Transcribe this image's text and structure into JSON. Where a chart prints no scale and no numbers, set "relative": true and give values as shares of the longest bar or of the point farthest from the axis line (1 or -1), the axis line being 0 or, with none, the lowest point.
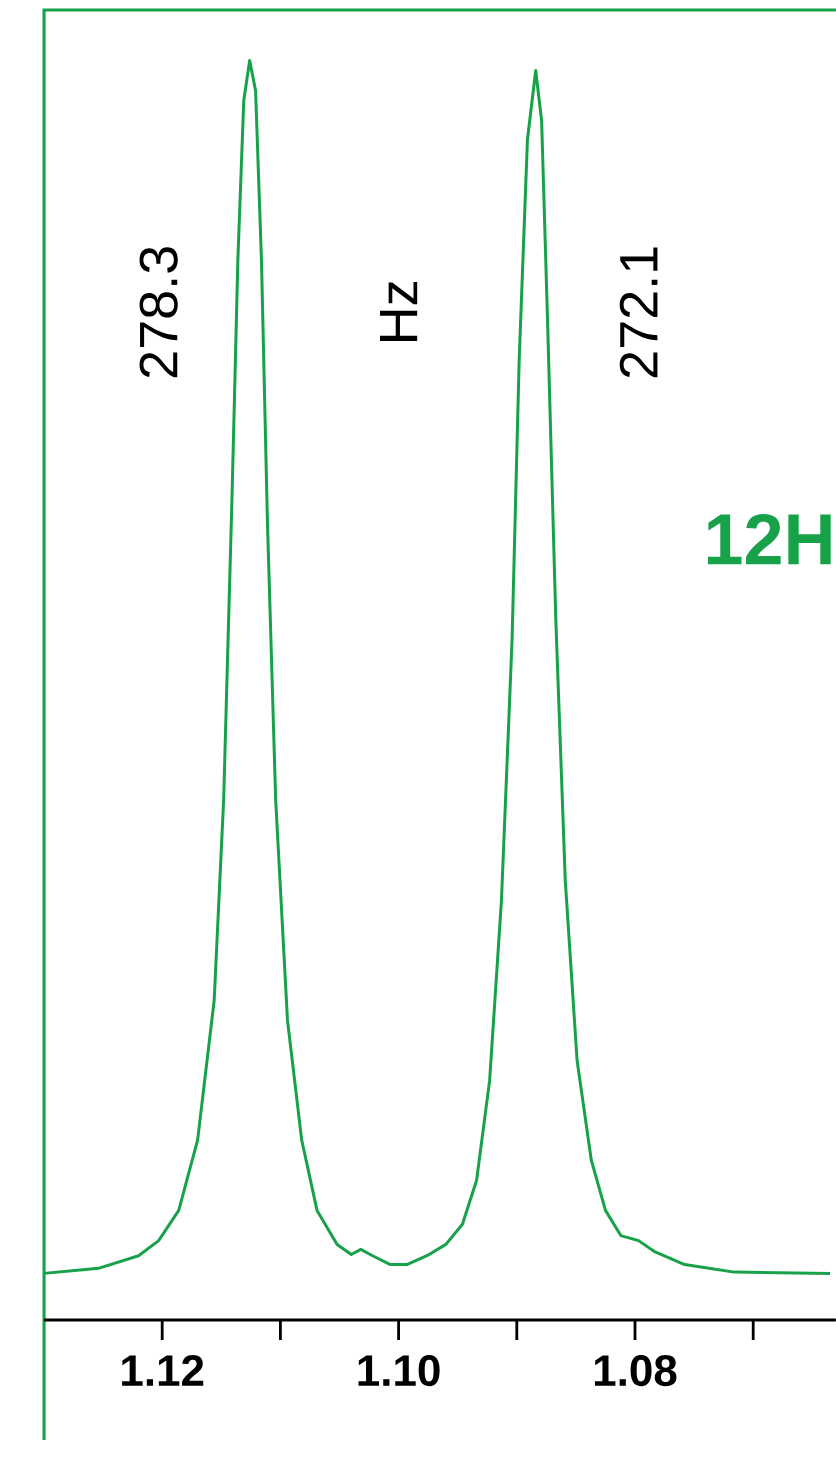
{
  "chart_data": {
    "type": "line",
    "relative": true,
    "color": "#17a24a",
    "marker": "none",
    "line_style": "solid",
    "tick_labels": "x",
    "xlim": [
      1.13,
      1.063
    ],
    "xticks": [
      1.12,
      {
        "value": 1.11,
        "label": null
      },
      {
        "value": 1.1,
        "label": "1.10"
      },
      {
        "value": 1.09,
        "label": null
      },
      1.08,
      {
        "value": 1.07,
        "label": null
      }
    ],
    "x": [
      1.13,
      1.1254,
      1.122,
      1.1203,
      1.1186,
      1.117,
      1.1156,
      1.1148,
      1.1141,
      1.1136,
      1.1131,
      1.1126,
      1.1121,
      1.1116,
      1.1111,
      1.1104,
      1.1094,
      1.1082,
      1.1069,
      1.1052,
      1.104,
      1.1032,
      1.1022,
      1.1007,
      1.0993,
      1.0976,
      1.096,
      1.0946,
      1.0934,
      1.0923,
      1.0913,
      1.0904,
      1.0898,
      1.0891,
      1.0884,
      1.0879,
      1.0874,
      1.0867,
      1.0859,
      1.0849,
      1.0837,
      1.0825,
      1.0812,
      1.0797,
      1.0783,
      1.0758,
      1.0716,
      1.0635
    ],
    "values": [
      0.037,
      0.041,
      0.051,
      0.063,
      0.087,
      0.143,
      0.254,
      0.413,
      0.651,
      0.841,
      0.968,
      1,
      0.976,
      0.841,
      0.635,
      0.413,
      0.238,
      0.143,
      0.087,
      0.06,
      0.052,
      0.056,
      0.051,
      0.044,
      0.044,
      0.051,
      0.06,
      0.076,
      0.111,
      0.19,
      0.333,
      0.54,
      0.762,
      0.937,
      0.992,
      0.952,
      0.794,
      0.556,
      0.349,
      0.206,
      0.127,
      0.087,
      0.067,
      0.063,
      0.054,
      0.044,
      0.038,
      0.037
    ],
    "annotations": [
      "278.3",
      "Hz",
      "272.1",
      "12H"
    ]
  }
}
